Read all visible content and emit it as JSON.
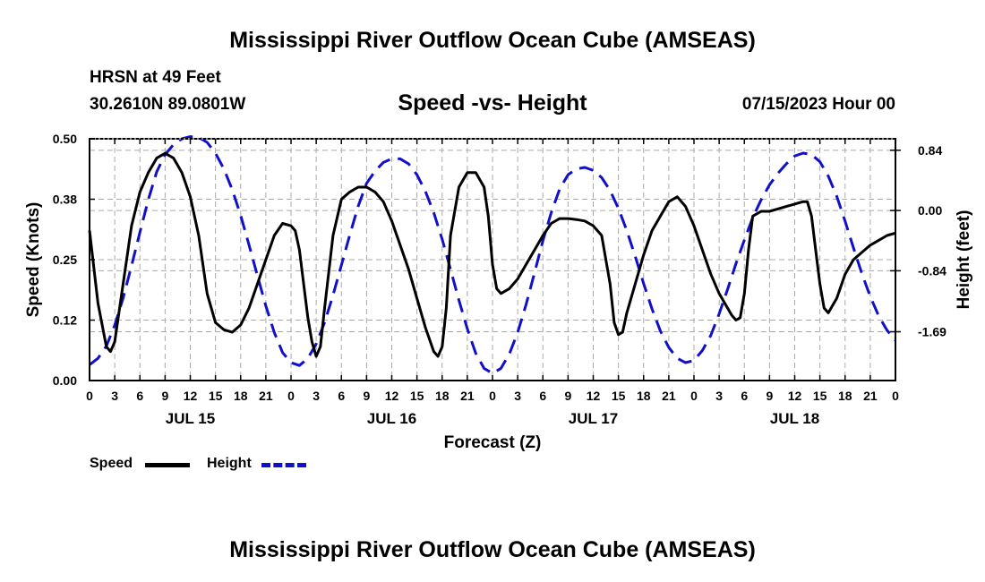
{
  "page": {
    "title": "Mississippi River Outflow Ocean Cube (AMSEAS)",
    "station": "HRSN at 49 Feet",
    "coords": "30.2610N  89.0801W",
    "subtitle": "Speed -vs- Height",
    "datetime": "07/15/2023 Hour 00",
    "footer_title": "Mississippi River Outflow Ocean Cube (AMSEAS)"
  },
  "legend": {
    "speed": "Speed",
    "height": "Height"
  },
  "colors": {
    "speed": "#000000",
    "height": "#1010c8",
    "grid": "#aaaaaa"
  },
  "chart_data": {
    "type": "line",
    "title": "Speed -vs- Height",
    "xlabel": "Forecast (Z)",
    "ylabel": "Speed (Knots)",
    "y2label": "Height (feet)",
    "xlim": [
      0,
      96
    ],
    "ylim": [
      0,
      0.5
    ],
    "y2lim": [
      -2.37,
      1.0
    ],
    "x_tick_values": [
      0,
      3,
      6,
      9,
      12,
      15,
      18,
      21,
      24,
      27,
      30,
      33,
      36,
      39,
      42,
      45,
      48,
      51,
      54,
      57,
      60,
      63,
      66,
      69,
      72,
      75,
      78,
      81,
      84,
      87,
      90,
      93,
      96
    ],
    "x_tick_labels": [
      "0",
      "3",
      "6",
      "9",
      "12",
      "15",
      "18",
      "21",
      "0",
      "3",
      "6",
      "9",
      "12",
      "15",
      "18",
      "21",
      "0",
      "3",
      "6",
      "9",
      "12",
      "15",
      "18",
      "21",
      "0",
      "3",
      "6",
      "9",
      "12",
      "15",
      "18",
      "21",
      "0"
    ],
    "day_labels": [
      {
        "label": "JUL 15",
        "x": 12
      },
      {
        "label": "JUL 16",
        "x": 36
      },
      {
        "label": "JUL 17",
        "x": 60
      },
      {
        "label": "JUL 18",
        "x": 84
      }
    ],
    "y_ticks": [
      0.0,
      0.125,
      0.25,
      0.375,
      0.5
    ],
    "y_tick_labels": [
      "0.00",
      "0.12",
      "0.25",
      "0.38",
      "0.50"
    ],
    "y2_ticks": [
      0.84,
      0.0,
      -0.84,
      -1.69
    ],
    "y2_tick_labels": [
      "0.84",
      "0.00",
      "-0.84",
      "-1.69"
    ],
    "series": [
      {
        "name": "Speed",
        "axis": "left",
        "style": "solid",
        "points": [
          [
            0,
            0.31
          ],
          [
            1,
            0.16
          ],
          [
            2,
            0.07
          ],
          [
            2.5,
            0.06
          ],
          [
            3,
            0.08
          ],
          [
            4,
            0.2
          ],
          [
            5,
            0.32
          ],
          [
            6,
            0.39
          ],
          [
            7,
            0.43
          ],
          [
            8,
            0.46
          ],
          [
            9,
            0.47
          ],
          [
            10,
            0.46
          ],
          [
            11,
            0.43
          ],
          [
            12,
            0.38
          ],
          [
            13,
            0.3
          ],
          [
            14,
            0.18
          ],
          [
            15,
            0.12
          ],
          [
            16,
            0.105
          ],
          [
            17,
            0.1
          ],
          [
            18,
            0.115
          ],
          [
            19,
            0.15
          ],
          [
            20,
            0.2
          ],
          [
            21,
            0.25
          ],
          [
            22,
            0.3
          ],
          [
            23,
            0.325
          ],
          [
            24,
            0.32
          ],
          [
            24.5,
            0.31
          ],
          [
            25,
            0.27
          ],
          [
            25.5,
            0.2
          ],
          [
            26,
            0.13
          ],
          [
            26.5,
            0.08
          ],
          [
            27,
            0.05
          ],
          [
            27.5,
            0.07
          ],
          [
            28,
            0.15
          ],
          [
            29,
            0.3
          ],
          [
            30,
            0.375
          ],
          [
            31,
            0.39
          ],
          [
            32,
            0.4
          ],
          [
            33,
            0.4
          ],
          [
            34,
            0.39
          ],
          [
            35,
            0.37
          ],
          [
            36,
            0.33
          ],
          [
            37,
            0.28
          ],
          [
            38,
            0.23
          ],
          [
            39,
            0.17
          ],
          [
            40,
            0.11
          ],
          [
            41,
            0.06
          ],
          [
            41.5,
            0.05
          ],
          [
            42,
            0.07
          ],
          [
            42.5,
            0.15
          ],
          [
            43,
            0.3
          ],
          [
            44,
            0.4
          ],
          [
            45,
            0.43
          ],
          [
            46,
            0.43
          ],
          [
            47,
            0.4
          ],
          [
            47.5,
            0.34
          ],
          [
            48,
            0.24
          ],
          [
            48.5,
            0.19
          ],
          [
            49,
            0.18
          ],
          [
            50,
            0.19
          ],
          [
            51,
            0.21
          ],
          [
            52,
            0.24
          ],
          [
            53,
            0.27
          ],
          [
            54,
            0.3
          ],
          [
            55,
            0.325
          ],
          [
            56,
            0.335
          ],
          [
            57,
            0.335
          ],
          [
            58,
            0.333
          ],
          [
            59,
            0.33
          ],
          [
            60,
            0.32
          ],
          [
            61,
            0.3
          ],
          [
            62,
            0.2
          ],
          [
            62.5,
            0.12
          ],
          [
            63,
            0.095
          ],
          [
            63.5,
            0.1
          ],
          [
            64,
            0.14
          ],
          [
            65,
            0.2
          ],
          [
            66,
            0.26
          ],
          [
            67,
            0.31
          ],
          [
            68,
            0.34
          ],
          [
            69,
            0.37
          ],
          [
            70,
            0.38
          ],
          [
            71,
            0.36
          ],
          [
            72,
            0.32
          ],
          [
            73,
            0.27
          ],
          [
            74,
            0.22
          ],
          [
            75,
            0.18
          ],
          [
            76,
            0.15
          ],
          [
            76.5,
            0.135
          ],
          [
            77,
            0.125
          ],
          [
            77.5,
            0.13
          ],
          [
            78,
            0.18
          ],
          [
            78.5,
            0.27
          ],
          [
            79,
            0.34
          ],
          [
            80,
            0.35
          ],
          [
            81,
            0.35
          ],
          [
            82,
            0.355
          ],
          [
            83,
            0.36
          ],
          [
            84,
            0.365
          ],
          [
            85,
            0.37
          ],
          [
            85.5,
            0.37
          ],
          [
            86,
            0.34
          ],
          [
            86.5,
            0.27
          ],
          [
            87,
            0.2
          ],
          [
            87.5,
            0.15
          ],
          [
            88,
            0.14
          ],
          [
            89,
            0.17
          ],
          [
            90,
            0.22
          ],
          [
            91,
            0.25
          ],
          [
            92,
            0.265
          ],
          [
            93,
            0.28
          ],
          [
            94,
            0.29
          ],
          [
            95,
            0.3
          ],
          [
            96,
            0.305
          ]
        ]
      },
      {
        "name": "Height",
        "axis": "right",
        "style": "dashed",
        "points": [
          [
            0,
            -2.15
          ],
          [
            1,
            -2.06
          ],
          [
            2,
            -1.89
          ],
          [
            3,
            -1.6
          ],
          [
            4,
            -1.22
          ],
          [
            5,
            -0.77
          ],
          [
            6,
            -0.3
          ],
          [
            7,
            0.15
          ],
          [
            8,
            0.54
          ],
          [
            9,
            0.78
          ],
          [
            10,
            0.92
          ],
          [
            11,
            1.0
          ],
          [
            12,
            1.03
          ],
          [
            13,
            1.02
          ],
          [
            14,
            0.95
          ],
          [
            15,
            0.8
          ],
          [
            16,
            0.58
          ],
          [
            17,
            0.29
          ],
          [
            18,
            -0.07
          ],
          [
            19,
            -0.48
          ],
          [
            20,
            -0.91
          ],
          [
            21,
            -1.33
          ],
          [
            22,
            -1.7
          ],
          [
            23,
            -1.98
          ],
          [
            24,
            -2.12
          ],
          [
            25,
            -2.16
          ],
          [
            26,
            -2.06
          ],
          [
            27,
            -1.86
          ],
          [
            28,
            -1.56
          ],
          [
            29,
            -1.18
          ],
          [
            30,
            -0.76
          ],
          [
            31,
            -0.34
          ],
          [
            32,
            0.06
          ],
          [
            33,
            0.38
          ],
          [
            34,
            0.55
          ],
          [
            35,
            0.67
          ],
          [
            36,
            0.72
          ],
          [
            37,
            0.72
          ],
          [
            38,
            0.65
          ],
          [
            39,
            0.5
          ],
          [
            40,
            0.27
          ],
          [
            41,
            -0.03
          ],
          [
            42,
            -0.4
          ],
          [
            43,
            -0.82
          ],
          [
            44,
            -1.25
          ],
          [
            45,
            -1.65
          ],
          [
            46,
            -1.99
          ],
          [
            47,
            -2.2
          ],
          [
            48,
            -2.27
          ],
          [
            49,
            -2.2
          ],
          [
            50,
            -2.0
          ],
          [
            51,
            -1.7
          ],
          [
            52,
            -1.31
          ],
          [
            53,
            -0.87
          ],
          [
            54,
            -0.42
          ],
          [
            55,
            -0.03
          ],
          [
            56,
            0.3
          ],
          [
            57,
            0.5
          ],
          [
            58,
            0.58
          ],
          [
            59,
            0.6
          ],
          [
            60,
            0.56
          ],
          [
            61,
            0.46
          ],
          [
            62,
            0.28
          ],
          [
            63,
            0.03
          ],
          [
            64,
            -0.28
          ],
          [
            65,
            -0.64
          ],
          [
            66,
            -1.02
          ],
          [
            67,
            -1.37
          ],
          [
            68,
            -1.68
          ],
          [
            69,
            -1.91
          ],
          [
            70,
            -2.06
          ],
          [
            71,
            -2.12
          ],
          [
            72,
            -2.09
          ],
          [
            73,
            -1.95
          ],
          [
            74,
            -1.74
          ],
          [
            75,
            -1.44
          ],
          [
            76,
            -1.1
          ],
          [
            77,
            -0.74
          ],
          [
            78,
            -0.41
          ],
          [
            79,
            -0.1
          ],
          [
            80,
            0.15
          ],
          [
            81,
            0.36
          ],
          [
            82,
            0.52
          ],
          [
            83,
            0.65
          ],
          [
            84,
            0.76
          ],
          [
            85,
            0.8
          ],
          [
            86,
            0.78
          ],
          [
            87,
            0.68
          ],
          [
            88,
            0.48
          ],
          [
            89,
            0.2
          ],
          [
            90,
            -0.15
          ],
          [
            91,
            -0.52
          ],
          [
            92,
            -0.88
          ],
          [
            93,
            -1.2
          ],
          [
            94,
            -1.47
          ],
          [
            95,
            -1.67
          ],
          [
            96,
            -1.81
          ]
        ]
      }
    ]
  }
}
